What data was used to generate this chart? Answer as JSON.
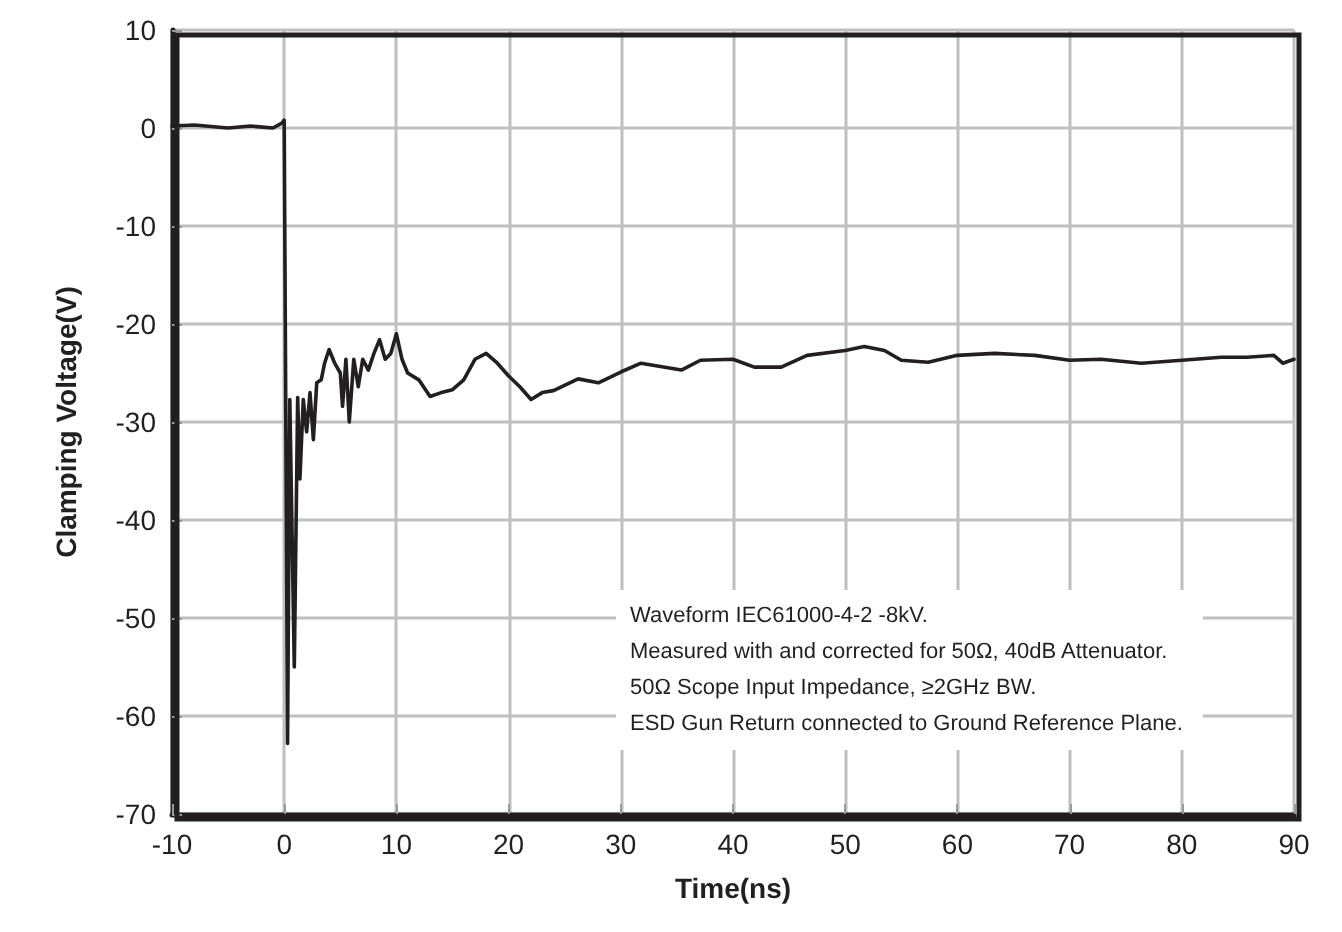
{
  "chart_data": {
    "type": "line",
    "xlabel": "Time(ns)",
    "ylabel": "Clamping Voltage(V)",
    "xlim": [
      -10,
      90
    ],
    "xticks": [
      -10,
      0,
      10,
      20,
      30,
      40,
      50,
      60,
      70,
      80,
      90
    ],
    "ylim": [
      -70,
      10
    ],
    "yticks": [
      -70,
      -60,
      -50,
      -40,
      -30,
      -20,
      -10,
      0,
      10
    ],
    "grid": true,
    "marker": "none",
    "line_style": "solid",
    "annotations": [
      "Waveform IEC61000-4-2 -8kV.",
      "Measured with and corrected for 50Ω, 40dB Attenuator.",
      "50Ω Scope Input Impedance, ≥2GHz BW.",
      "ESD Gun Return connected to Ground Reference Plane."
    ],
    "series": [
      {
        "color": "#231f20",
        "x": [
          -10,
          -8,
          -5,
          -3,
          -1,
          -0.2,
          0,
          0.3,
          0.5,
          0.9,
          1.2,
          1.4,
          1.7,
          2.0,
          2.3,
          2.6,
          2.9,
          3.3,
          3.6,
          4.0,
          4.5,
          5.0,
          5.2,
          5.5,
          5.8,
          6.2,
          6.6,
          7.0,
          7.5,
          8.0,
          8.5,
          9.0,
          9.5,
          10,
          10.5,
          11,
          12,
          13,
          14,
          15,
          16,
          17,
          18,
          19,
          20,
          21,
          22,
          23,
          24,
          26.2,
          28,
          30,
          31.8,
          35.4,
          37.1,
          40,
          41.9,
          44.3,
          46.6,
          50,
          51.7,
          53.5,
          55,
          57.4,
          60,
          63.3,
          66.9,
          70,
          72.8,
          76.4,
          80,
          83.5,
          85.8,
          88.2,
          89,
          90
        ],
        "values": [
          0.2,
          0.3,
          0,
          0.2,
          0,
          0.5,
          0.8,
          -62.8,
          -27.7,
          -55,
          -27.5,
          -35.8,
          -27.7,
          -31,
          -27,
          -31.8,
          -26,
          -25.7,
          -24,
          -22.6,
          -24,
          -25,
          -28.4,
          -23.6,
          -30,
          -23.6,
          -26.4,
          -23.6,
          -24.7,
          -23,
          -21.6,
          -23.6,
          -23,
          -21,
          -23.6,
          -25,
          -25.7,
          -27.4,
          -27,
          -26.7,
          -25.7,
          -23.6,
          -23,
          -24,
          -25.3,
          -26.4,
          -27.7,
          -27,
          -26.8,
          -25.6,
          -26,
          -24.9,
          -24,
          -24.7,
          -23.7,
          -23.6,
          -24.4,
          -24.4,
          -23.2,
          -22.7,
          -22.3,
          -22.7,
          -23.7,
          -23.9,
          -23.2,
          -23,
          -23.2,
          -23.7,
          -23.6,
          -24,
          -23.7,
          -23.4,
          -23.4,
          -23.2,
          -24,
          -23.6
        ]
      }
    ]
  }
}
